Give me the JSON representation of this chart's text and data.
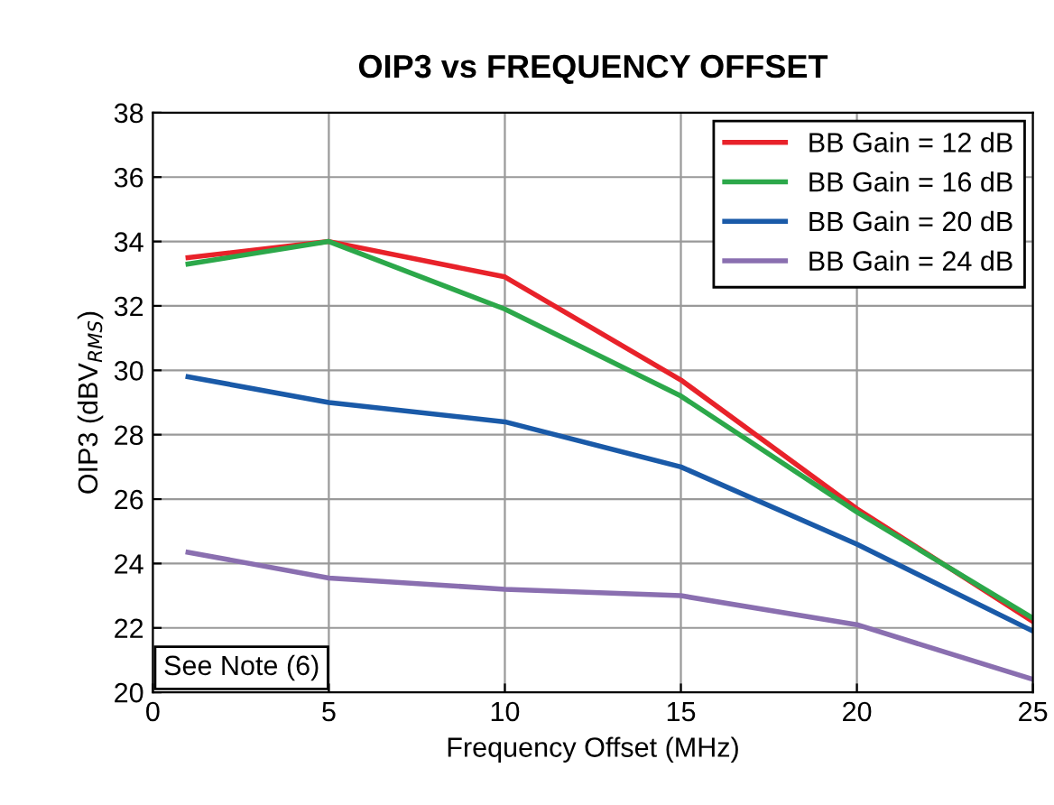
{
  "chart_data": {
    "type": "line",
    "title": "OIP3 vs FREQUENCY OFFSET",
    "xlabel": "Frequency Offset (MHz)",
    "ylabel": "OIP3 (dBV$_{RMS}$)",
    "x": [
      1,
      5,
      10,
      15,
      20,
      25
    ],
    "series": [
      {
        "name": "BB Gain = 12 dB",
        "color": "#e8222a",
        "values": [
          33.5,
          34.0,
          32.9,
          29.7,
          25.7,
          22.2
        ]
      },
      {
        "name": "BB Gain = 16 dB",
        "color": "#2ca84a",
        "values": [
          33.3,
          34.0,
          31.9,
          29.2,
          25.6,
          22.3
        ]
      },
      {
        "name": "BB Gain = 20 dB",
        "color": "#1a5aa8",
        "values": [
          29.8,
          29.0,
          28.4,
          27.0,
          24.6,
          21.9
        ]
      },
      {
        "name": "BB Gain = 24 dB",
        "color": "#8a6fb0",
        "values": [
          24.35,
          23.55,
          23.2,
          23.0,
          22.1,
          20.4
        ]
      }
    ],
    "xlim": [
      0,
      25
    ],
    "xticks": [
      0,
      5,
      10,
      15,
      20,
      25
    ],
    "ylim": [
      20,
      38
    ],
    "yticks": [
      20,
      22,
      24,
      26,
      28,
      30,
      32,
      34,
      36,
      38
    ],
    "grid": true,
    "legend": "top right",
    "annotations": [
      "See Note (6)"
    ]
  }
}
